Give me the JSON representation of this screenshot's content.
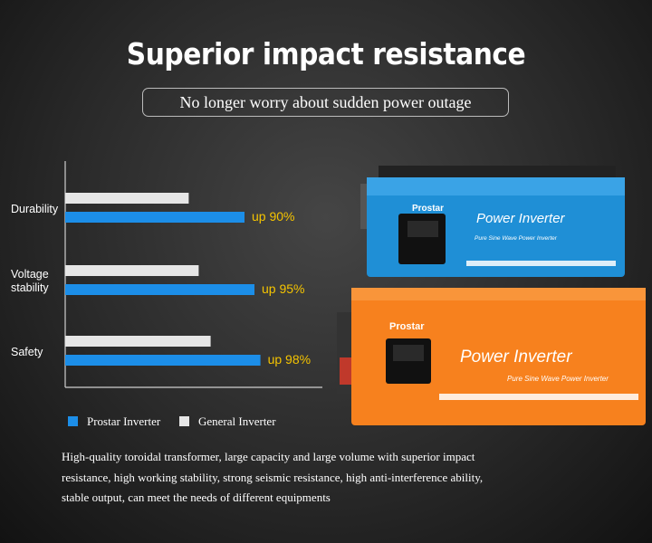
{
  "chart_data": {
    "type": "bar",
    "orientation": "horizontal",
    "title": "Superior impact resistance",
    "subtitle": "No longer worry about sudden power outage",
    "categories": [
      "Durability",
      "Voltage stability",
      "Safety"
    ],
    "series": [
      {
        "name": "General Inverter",
        "color": "#e6e6e6",
        "values": [
          62,
          67,
          73
        ]
      },
      {
        "name": "Prostar Inverter",
        "color": "#1c8ee8",
        "values": [
          90,
          95,
          98
        ],
        "value_labels": [
          "up 90%",
          "up 95%",
          "up 98%"
        ]
      }
    ]
  },
  "product": {
    "brand": "Prostar",
    "name": "Power Inverter",
    "tagline": "Pure Sine Wave Power Inverter"
  },
  "description": "High-quality toroidal transformer, large capacity and large volume with superior impact resistance, high working stability, strong seismic resistance, high anti-interference ability, stable output, can meet the needs of different equipments"
}
